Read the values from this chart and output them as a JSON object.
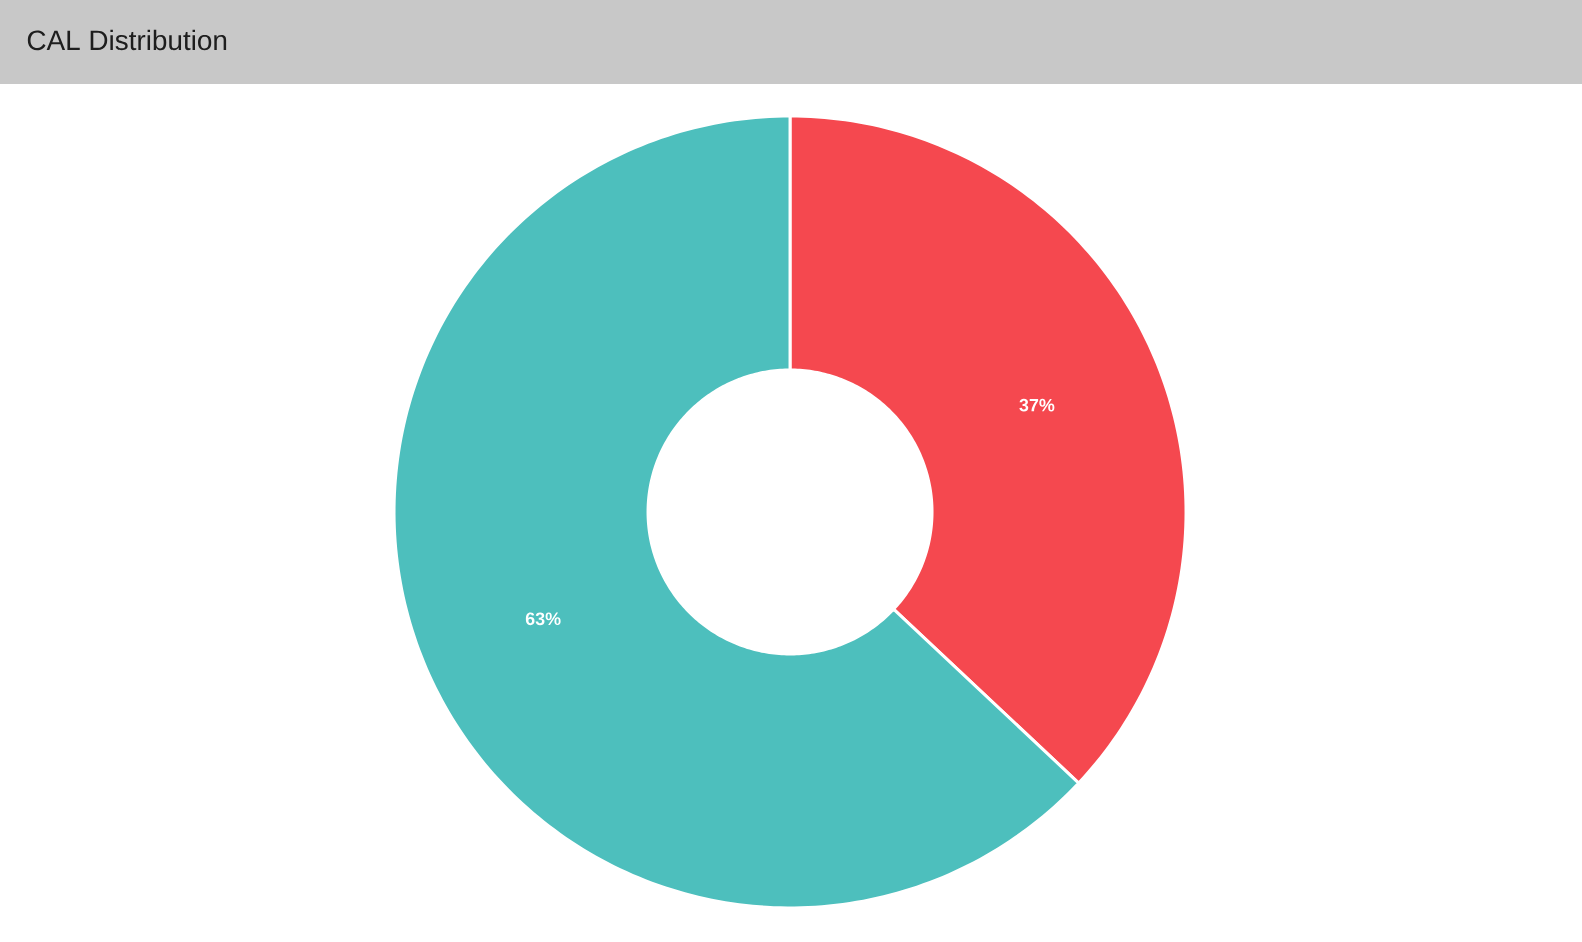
{
  "chart_data": {
    "type": "donut",
    "title": "CAL Distribution",
    "categories": [
      null,
      null
    ],
    "values": [
      37,
      63
    ],
    "colors": [
      "#f5484f",
      "#4dbfbd"
    ],
    "value_labels": [
      "37%",
      "63%"
    ]
  }
}
